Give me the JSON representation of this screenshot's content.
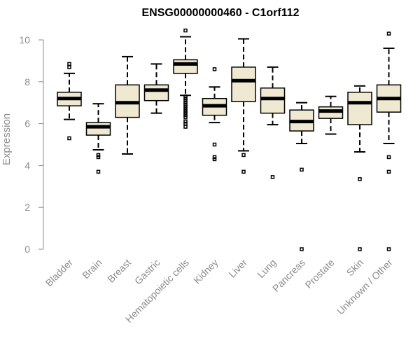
{
  "chart_data": {
    "type": "boxplot",
    "title": "ENSG00000000460 - C1orf112",
    "ylabel": "Expression",
    "xlabel": "",
    "ylim": [
      0,
      10
    ],
    "yticks": [
      0,
      2,
      4,
      6,
      8,
      10
    ],
    "grid": false,
    "colors": {
      "box_fill": "#efe9d2",
      "stroke": "#000000",
      "axis": "#8c8c8c"
    },
    "categories": [
      "Bladder",
      "Brain",
      "Breast",
      "Gastric",
      "Hematopoietic cells",
      "Kidney",
      "Liver",
      "Lung",
      "Pancreas",
      "Prostate",
      "Skin",
      "Unknown / Other"
    ],
    "boxes": [
      {
        "whisker_low": 6.2,
        "q1": 6.85,
        "median": 7.2,
        "q3": 7.5,
        "whisker_high": 8.4,
        "outliers": [
          5.3,
          8.7,
          8.85
        ]
      },
      {
        "whisker_low": 4.75,
        "q1": 5.45,
        "median": 5.85,
        "q3": 6.05,
        "whisker_high": 6.95,
        "outliers": [
          4.4,
          4.5,
          3.7
        ]
      },
      {
        "whisker_low": 4.55,
        "q1": 6.3,
        "median": 7.0,
        "q3": 7.85,
        "whisker_high": 9.2,
        "outliers": []
      },
      {
        "whisker_low": 6.5,
        "q1": 7.1,
        "median": 7.6,
        "q3": 7.85,
        "whisker_high": 8.85,
        "outliers": []
      },
      {
        "whisker_low": 7.35,
        "q1": 8.4,
        "median": 8.85,
        "q3": 9.05,
        "whisker_high": 10.15,
        "outliers": [
          10.45,
          7.3,
          7.2,
          7.1,
          7.0,
          6.9,
          6.8,
          6.7,
          6.6,
          6.5,
          6.4,
          6.3,
          6.1,
          6.0,
          5.85
        ]
      },
      {
        "whisker_low": 6.05,
        "q1": 6.4,
        "median": 6.85,
        "q3": 7.2,
        "whisker_high": 7.75,
        "outliers": [
          8.6,
          5.0,
          4.4,
          4.3
        ]
      },
      {
        "whisker_low": 4.7,
        "q1": 7.05,
        "median": 8.05,
        "q3": 8.7,
        "whisker_high": 10.05,
        "outliers": [
          4.5,
          3.7
        ]
      },
      {
        "whisker_low": 5.95,
        "q1": 6.5,
        "median": 7.2,
        "q3": 7.7,
        "whisker_high": 8.7,
        "outliers": [
          3.45
        ]
      },
      {
        "whisker_low": 5.05,
        "q1": 5.65,
        "median": 6.1,
        "q3": 6.65,
        "whisker_high": 7.0,
        "outliers": [
          3.8,
          0.0
        ]
      },
      {
        "whisker_low": 5.5,
        "q1": 6.25,
        "median": 6.6,
        "q3": 6.8,
        "whisker_high": 7.3,
        "outliers": []
      },
      {
        "whisker_low": 4.65,
        "q1": 5.95,
        "median": 7.0,
        "q3": 7.5,
        "whisker_high": 7.8,
        "outliers": [
          3.35,
          0.0
        ]
      },
      {
        "whisker_low": 5.05,
        "q1": 6.55,
        "median": 7.2,
        "q3": 7.85,
        "whisker_high": 9.6,
        "outliers": [
          10.3,
          4.4,
          3.7,
          0.0
        ]
      }
    ]
  }
}
